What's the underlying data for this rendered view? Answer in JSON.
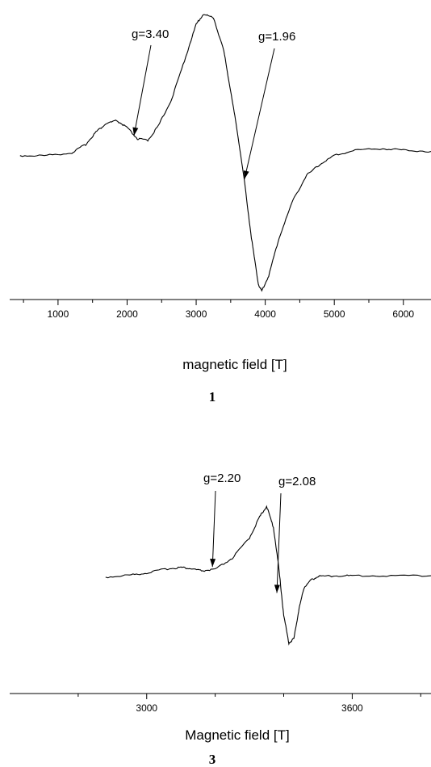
{
  "chart_data": [
    {
      "type": "line",
      "panel_label": "1",
      "xlabel": "magnetic field [T]",
      "ylabel": "",
      "xlim": [
        300,
        6400
      ],
      "ylim": [
        -1.0,
        1.0
      ],
      "x_ticks_major": [
        1000,
        2000,
        3000,
        4000,
        5000,
        6000
      ],
      "x_ticks_minor": [
        500,
        1500,
        2500,
        3500,
        4500,
        5500
      ],
      "grid": false,
      "series": [
        {
          "x": [
            450,
            800,
            1200,
            1400,
            1550,
            1700,
            1850,
            2000,
            2150,
            2300,
            2450,
            2650,
            2850,
            3000,
            3100,
            3250,
            3400,
            3500,
            3600,
            3700,
            3800,
            3900,
            3950,
            4050,
            4200,
            4400,
            4600,
            4800,
            5000,
            5300,
            5700,
            6000,
            6400
          ],
          "y": [
            -0.01,
            -0.01,
            0.01,
            0.07,
            0.16,
            0.22,
            0.24,
            0.19,
            0.11,
            0.1,
            0.2,
            0.4,
            0.7,
            0.93,
            1.0,
            0.98,
            0.74,
            0.45,
            0.15,
            -0.2,
            -0.6,
            -0.93,
            -0.98,
            -0.87,
            -0.6,
            -0.33,
            -0.15,
            -0.07,
            -0.01,
            0.03,
            0.04,
            0.03,
            0.02
          ]
        }
      ],
      "annotations": [
        {
          "label": "g=3.40",
          "x": 2100,
          "y": 0.11
        },
        {
          "label": "g=1.96",
          "x": 3700,
          "y": -0.2
        }
      ]
    },
    {
      "type": "line",
      "panel_label": "3",
      "xlabel": "Magnetic field [T]",
      "ylabel": "",
      "xlim": [
        2600,
        3830
      ],
      "ylim": [
        -1.0,
        1.0
      ],
      "x_ticks_major": [
        3000,
        3600
      ],
      "x_ticks_minor": [
        2800,
        3200,
        3400,
        3800
      ],
      "grid": false,
      "series": [
        {
          "x": [
            2880,
            2950,
            3000,
            3060,
            3100,
            3130,
            3160,
            3200,
            3250,
            3300,
            3330,
            3350,
            3370,
            3385,
            3400,
            3415,
            3430,
            3445,
            3460,
            3480,
            3500,
            3550,
            3600,
            3700,
            3830
          ],
          "y": [
            -0.01,
            0.02,
            0.05,
            0.11,
            0.13,
            0.11,
            0.08,
            0.1,
            0.26,
            0.55,
            0.85,
            1.0,
            0.7,
            0.15,
            -0.55,
            -0.95,
            -0.88,
            -0.45,
            -0.15,
            -0.05,
            0.0,
            0.01,
            0.01,
            0.01,
            0.01
          ]
        }
      ],
      "annotations": [
        {
          "label": "g=2.20",
          "x": 3192,
          "y": 0.09
        },
        {
          "label": "g=2.08",
          "x": 3380,
          "y": -0.28
        }
      ]
    }
  ]
}
